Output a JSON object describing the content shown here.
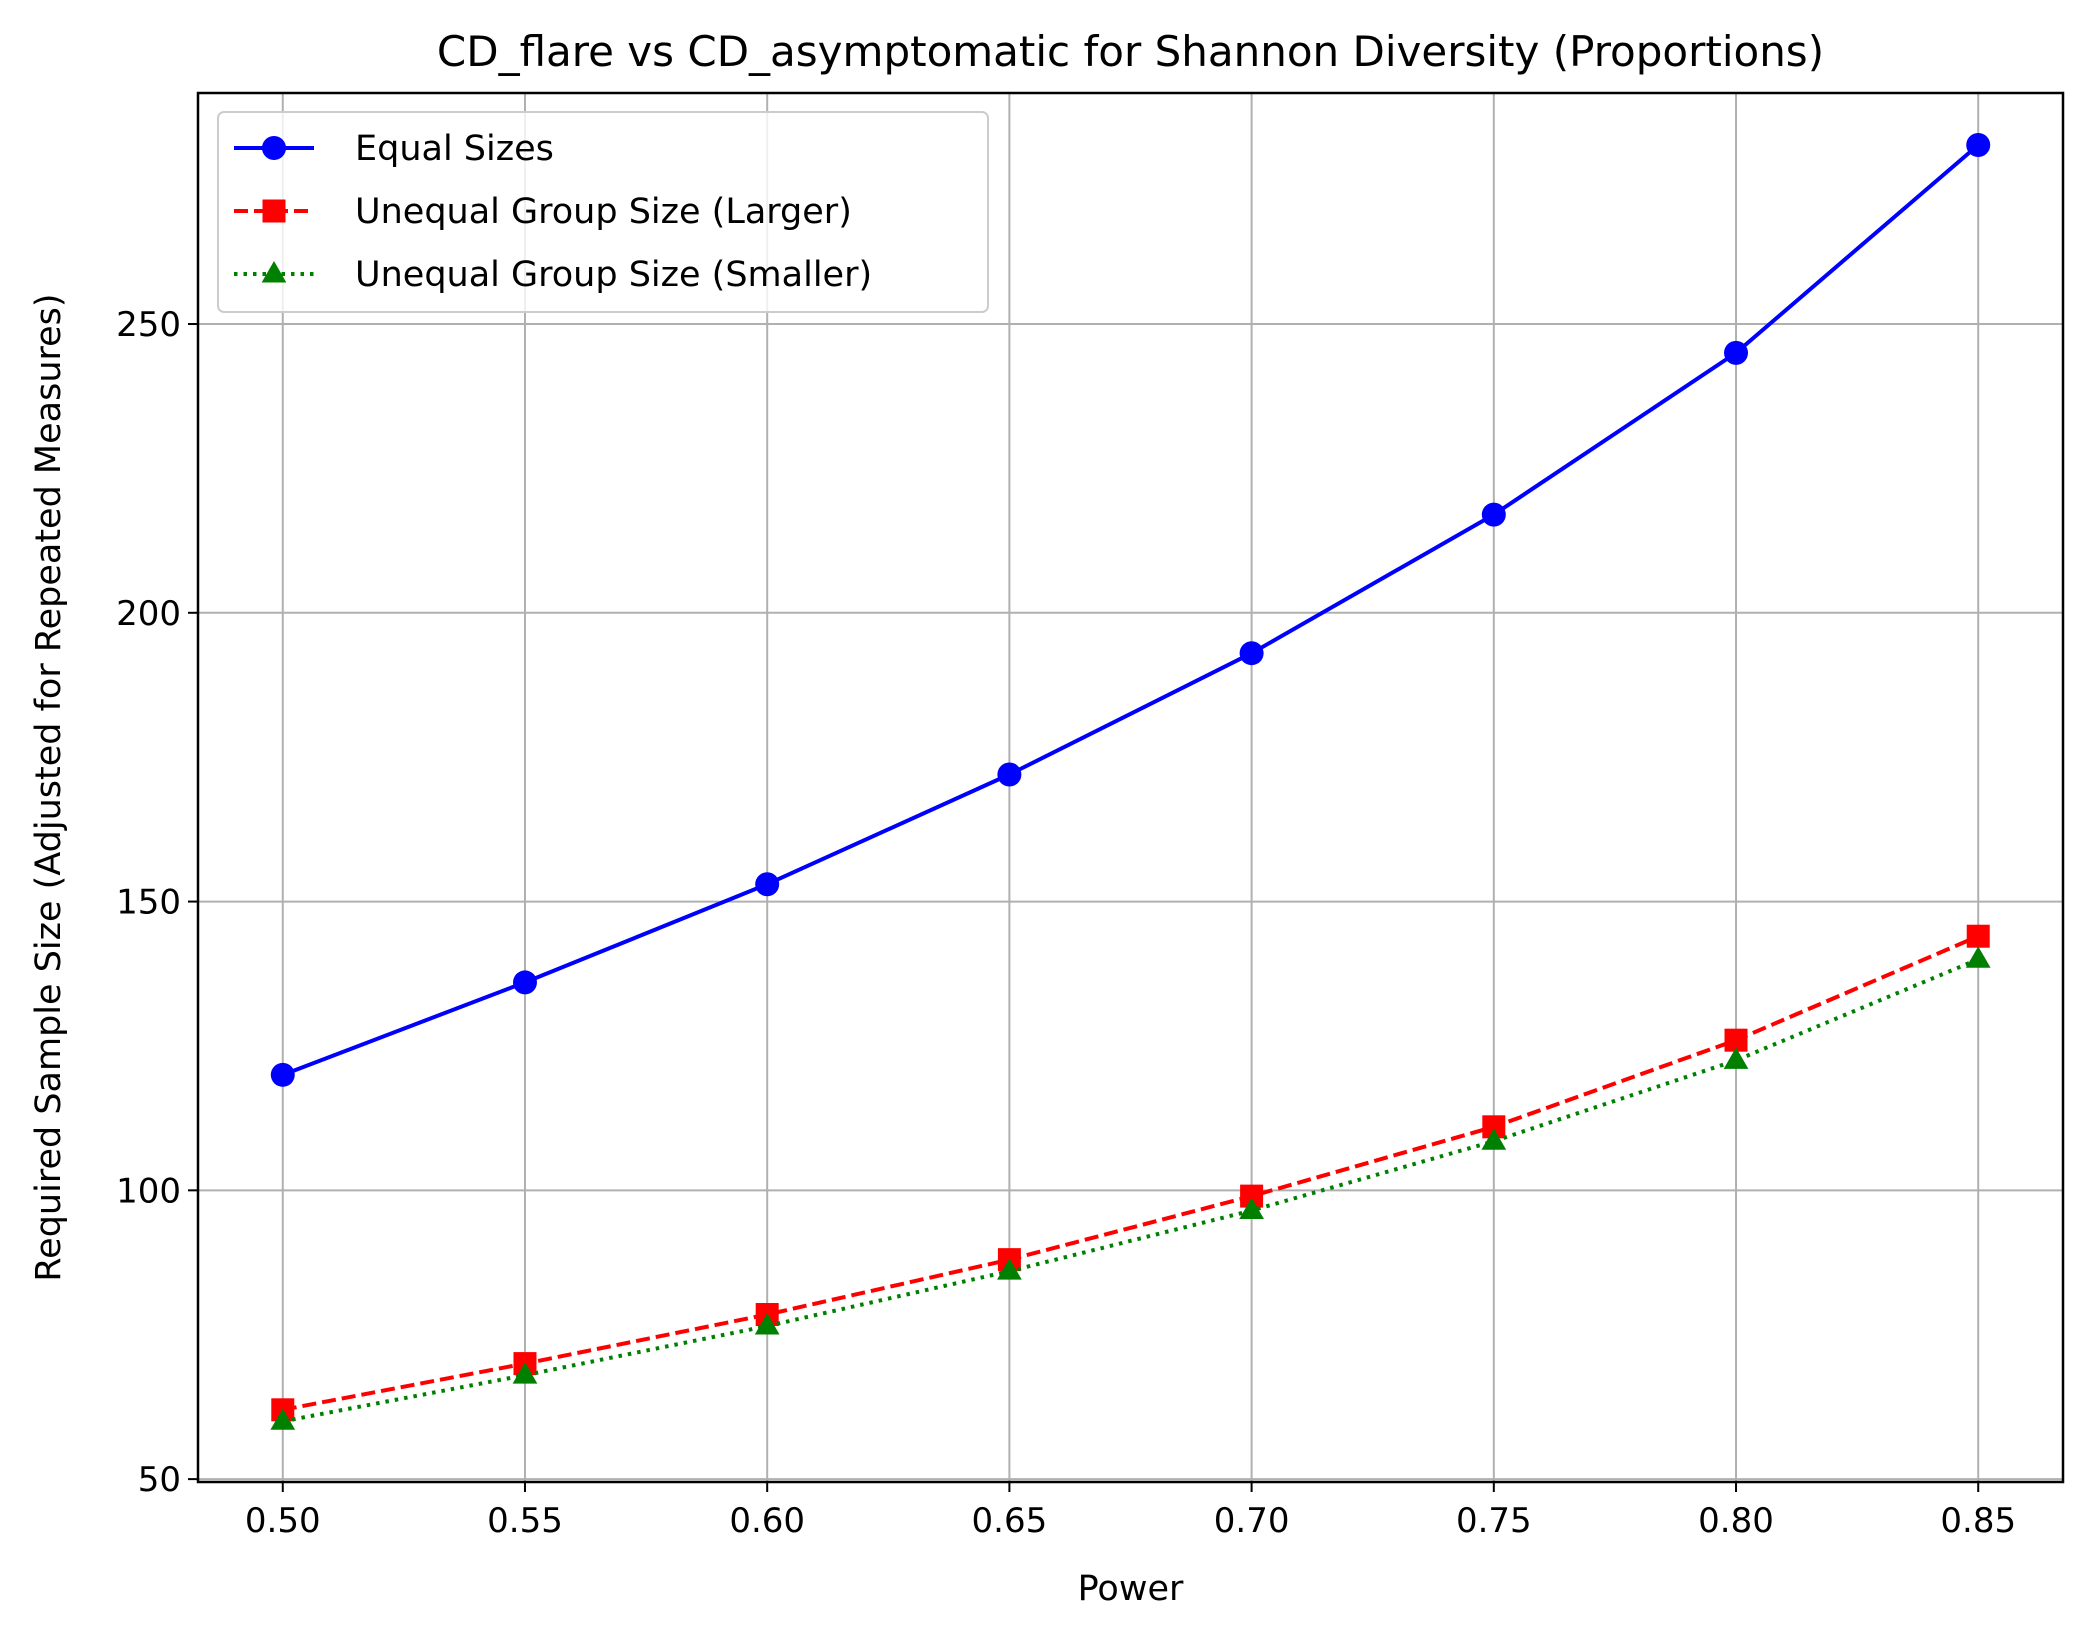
{
  "chart_data": {
    "type": "line",
    "title": "CD_flare vs CD_asymptomatic for Shannon Diversity (Proportions)",
    "xlabel": "Power",
    "ylabel": "Required Sample Size (Adjusted for Repeated Measures)",
    "x": [
      0.5,
      0.55,
      0.6,
      0.65,
      0.7,
      0.75,
      0.8,
      0.85
    ],
    "x_tick_labels": [
      "0.50",
      "0.55",
      "0.60",
      "0.65",
      "0.70",
      "0.75",
      "0.80",
      "0.85"
    ],
    "y_ticks": [
      50,
      100,
      150,
      200,
      250
    ],
    "y_tick_labels": [
      "50",
      "100",
      "150",
      "200",
      "250"
    ],
    "xlim": [
      0.4825,
      0.8675
    ],
    "ylim": [
      49.5,
      290
    ],
    "grid": true,
    "legend_position": "top-left",
    "series": [
      {
        "name": "Equal Sizes",
        "color": "#0000ff",
        "linestyle": "solid",
        "marker": "circle",
        "values": [
          120,
          136,
          153,
          172,
          193,
          217,
          245,
          281
        ]
      },
      {
        "name": "Unequal Group Size (Larger)",
        "color": "#ff0000",
        "linestyle": "dashed",
        "marker": "square",
        "values": [
          62,
          70,
          78.5,
          88,
          99,
          111,
          126,
          144
        ]
      },
      {
        "name": "Unequal Group Size (Smaller)",
        "color": "#008000",
        "linestyle": "dotted",
        "marker": "triangle",
        "values": [
          60,
          68,
          76.5,
          86,
          96.5,
          108.5,
          122.5,
          140
        ]
      }
    ]
  }
}
